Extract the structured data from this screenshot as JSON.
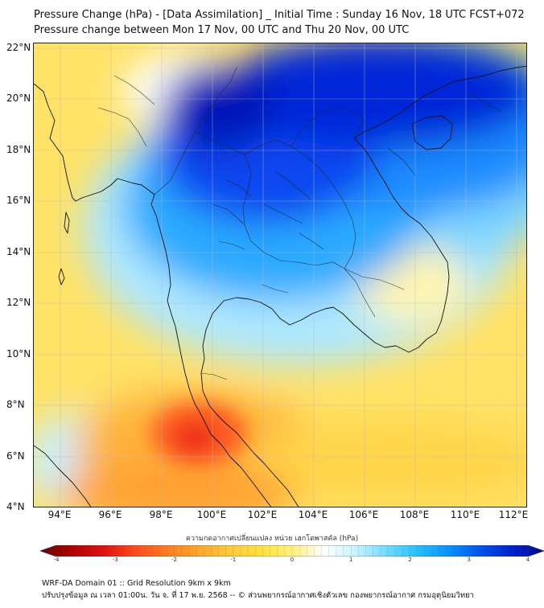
{
  "title": "Pressure Change (hPa) - [Data Assimilation] _ Initial Time : Sunday 16 Nov, 18 UTC FCST+072",
  "subtitle": "Pressure change between Mon 17 Nov, 00 UTC and Thu 20 Nov, 00 UTC",
  "map": {
    "lat_labels": [
      "22°N",
      "20°N",
      "18°N",
      "16°N",
      "14°N",
      "12°N",
      "10°N",
      "8°N",
      "6°N",
      "4°N"
    ],
    "lon_labels": [
      "94°E",
      "96°E",
      "98°E",
      "100°E",
      "102°E",
      "104°E",
      "106°E",
      "108°E",
      "110°E",
      "112°E"
    ],
    "extent": {
      "lon_min": 93.0,
      "lon_max": 112.5,
      "lat_min": 4.0,
      "lat_max": 22.2
    },
    "grid": true
  },
  "colorbar": {
    "label": "ความกดอากาศเปลี่ยนแปลง หน่วย เฮกโตพาสคัล (hPa)",
    "ticks": [
      "-4",
      "-3",
      "-2",
      "-1",
      "0",
      "1",
      "2",
      "3",
      "4"
    ],
    "min": -4,
    "max": 4,
    "colors": [
      "#6b0000",
      "#b00000",
      "#e01010",
      "#ff4a1a",
      "#ff7a20",
      "#ffa62a",
      "#ffc83a",
      "#ffe23c",
      "#fff07a",
      "#ffffff",
      "#c8f4ff",
      "#6fdcff",
      "#22c0ff",
      "#0a90ff",
      "#0050f0",
      "#0020d0",
      "#000a90"
    ]
  },
  "footer": {
    "line1": "WRF-DA Domain 01 :: Grid Resolution 9km x 9km",
    "line2": "ปรับปรุงข้อมูล ณ เวลา 01:00น. วัน จ. ที่ 17 พ.ย. 2568 -- © ส่วนพยากรณ์อากาศเชิงตัวเลข กองพยากรณ์อากาศ กรมอุตุนิยมวิทยา"
  }
}
